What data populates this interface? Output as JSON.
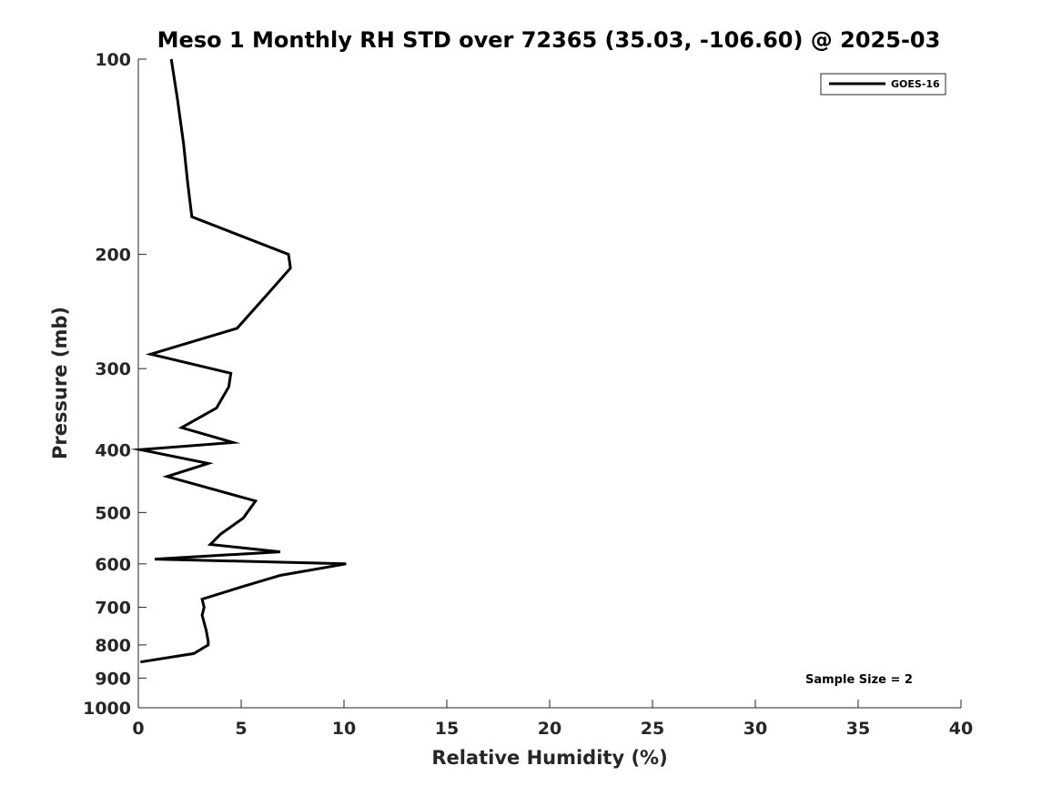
{
  "chart_data": {
    "type": "line",
    "title": "Meso 1 Monthly RH STD over 72365 (35.03, -106.60) @ 2025-03",
    "xlabel": "Relative Humidity (%)",
    "ylabel": "Pressure (mb)",
    "xlim": [
      0,
      40
    ],
    "ylim": [
      1000,
      100
    ],
    "y_scale": "log",
    "y_reversed": true,
    "grid": false,
    "x_ticks": [
      0,
      5,
      10,
      15,
      20,
      25,
      30,
      35,
      40
    ],
    "y_ticks": [
      100,
      200,
      300,
      400,
      500,
      600,
      700,
      800,
      900,
      1000
    ],
    "legend": {
      "position": "top-right",
      "entries": [
        "GOES-16"
      ]
    },
    "annotation": "Sample Size = 2",
    "colors": {
      "line": "#000000",
      "axes": "#262626"
    },
    "series": [
      {
        "name": "GOES-16",
        "x": [
          1.6,
          1.9,
          2.2,
          2.4,
          2.6,
          7.3,
          7.4,
          6.3,
          4.8,
          0.6,
          4.5,
          4.4,
          3.8,
          2.1,
          4.6,
          0.1,
          3.4,
          1.4,
          5.7,
          5.1,
          4.0,
          3.5,
          6.9,
          0.8,
          10.1,
          6.9,
          5.1,
          3.1,
          3.2,
          3.1,
          3.3,
          3.4,
          3.4,
          2.7,
          0.1
        ],
        "y": [
          100,
          115,
          135,
          155,
          175,
          200,
          210,
          230,
          260,
          285,
          305,
          320,
          345,
          370,
          390,
          400,
          420,
          440,
          480,
          510,
          540,
          560,
          575,
          590,
          600,
          625,
          650,
          680,
          700,
          720,
          760,
          790,
          800,
          825,
          850
        ]
      }
    ]
  }
}
